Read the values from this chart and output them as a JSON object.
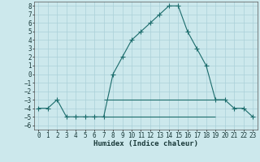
{
  "xlabel": "Humidex (Indice chaleur)",
  "xlim": [
    -0.5,
    23.5
  ],
  "ylim": [
    -6.5,
    8.5
  ],
  "xticks": [
    0,
    1,
    2,
    3,
    4,
    5,
    6,
    7,
    8,
    9,
    10,
    11,
    12,
    13,
    14,
    15,
    16,
    17,
    18,
    19,
    20,
    21,
    22,
    23
  ],
  "yticks": [
    -6,
    -5,
    -4,
    -3,
    -2,
    -1,
    0,
    1,
    2,
    3,
    4,
    5,
    6,
    7,
    8
  ],
  "background_color": "#cce8ec",
  "grid_color": "#aad0d8",
  "line_color": "#1a6b6b",
  "main_curve_x": [
    0,
    1,
    2,
    3,
    4,
    5,
    6,
    7,
    8,
    9,
    10,
    11,
    12,
    13,
    14,
    15,
    16,
    17,
    18,
    19,
    20,
    21,
    22,
    23
  ],
  "main_curve_y": [
    -4,
    -4,
    -3,
    -5,
    -5,
    -5,
    -5,
    -5,
    0,
    2,
    4,
    5,
    6,
    7,
    8,
    8,
    5,
    3,
    1,
    -3,
    -3,
    -4,
    -4,
    -5
  ],
  "hline1_y": -3,
  "hline1_xstart": 7,
  "hline1_xend": 20,
  "hline2_y": -5,
  "hline2_xstart": 7,
  "hline2_xend": 19,
  "marker_size": 4,
  "linewidth": 0.8,
  "tick_fontsize": 5.5,
  "xlabel_fontsize": 6.5
}
